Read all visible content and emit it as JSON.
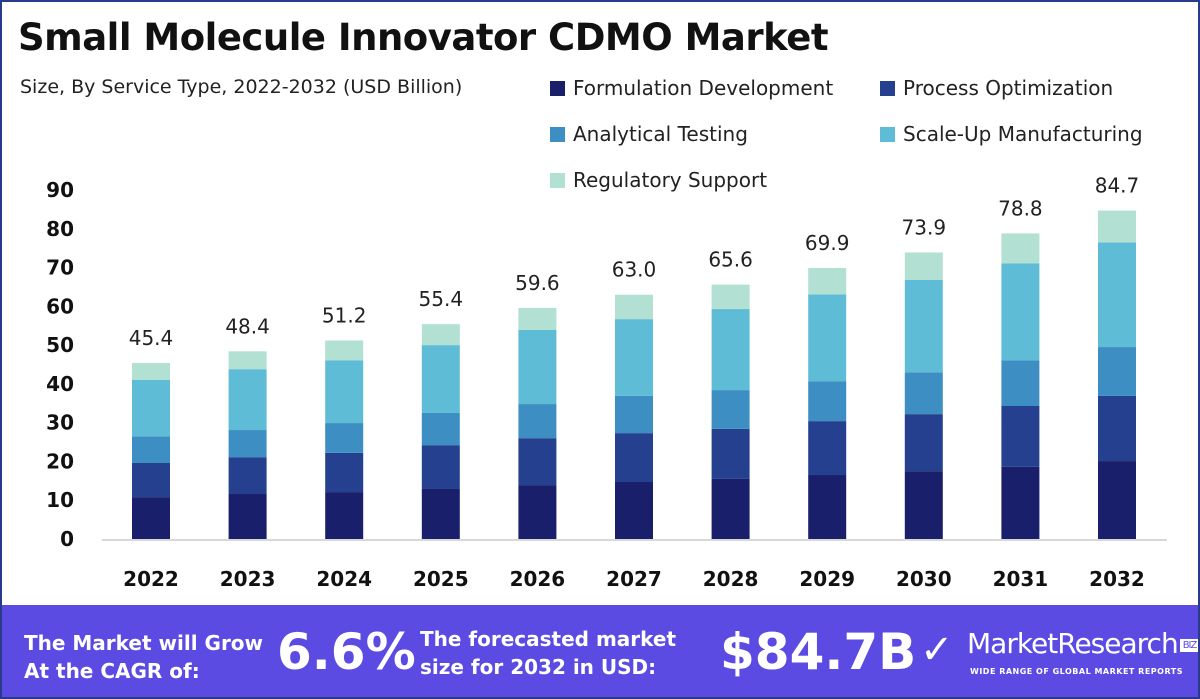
{
  "chart_data": {
    "type": "bar",
    "stacked": true,
    "title": "Small Molecule Innovator CDMO Market",
    "subtitle": "Size, By Service Type, 2022-2032 (USD Billion)",
    "categories": [
      "2022",
      "2023",
      "2024",
      "2025",
      "2026",
      "2027",
      "2028",
      "2029",
      "2030",
      "2031",
      "2032"
    ],
    "series": [
      {
        "name": "Formulation Development",
        "color": "#1a1f6b",
        "values": [
          10.8,
          11.6,
          12.1,
          12.9,
          13.9,
          14.7,
          15.5,
          16.5,
          17.5,
          18.6,
          20.1
        ]
      },
      {
        "name": "Process Optimization",
        "color": "#24408f",
        "values": [
          8.8,
          9.5,
          10.1,
          11.3,
          12.1,
          12.6,
          12.9,
          13.9,
          14.7,
          15.7,
          16.8
        ]
      },
      {
        "name": "Analytical Testing",
        "color": "#3d8fc3",
        "values": [
          6.9,
          7.0,
          7.7,
          8.3,
          8.8,
          9.6,
          10.0,
          10.3,
          10.8,
          11.8,
          12.6
        ]
      },
      {
        "name": "Scale-Up Manufacturing",
        "color": "#5fbcd6",
        "values": [
          14.5,
          15.7,
          16.2,
          17.5,
          19.1,
          19.8,
          20.9,
          22.4,
          23.8,
          25.0,
          27.0
        ]
      },
      {
        "name": "Regulatory Support",
        "color": "#b2e0d2",
        "values": [
          4.4,
          4.6,
          5.1,
          5.4,
          5.7,
          6.3,
          6.3,
          6.8,
          7.1,
          7.7,
          8.2
        ]
      }
    ],
    "totals": [
      "45.4",
      "48.4",
      "51.2",
      "55.4",
      "59.6",
      "63.0",
      "65.6",
      "69.9",
      "73.9",
      "78.8",
      "84.7"
    ],
    "yticks": [
      "0",
      "10",
      "20",
      "30",
      "40",
      "50",
      "60",
      "70",
      "80",
      "90"
    ],
    "ylim": [
      0,
      90
    ],
    "grid": false,
    "legend": "top-right"
  },
  "footer": {
    "cagr_label_1": "The Market will Grow",
    "cagr_label_2": "At the CAGR of:",
    "cagr_value": "6.6%",
    "forecast_label_1": "The forecasted market",
    "forecast_label_2": "size for 2032 in USD:",
    "forecast_value": "$84.7B",
    "logo_text": "MarketResearch",
    "logo_badge": "BIZ",
    "logo_tagline": "WIDE RANGE OF GLOBAL MARKET REPORTS",
    "background": "#5b4be3"
  }
}
